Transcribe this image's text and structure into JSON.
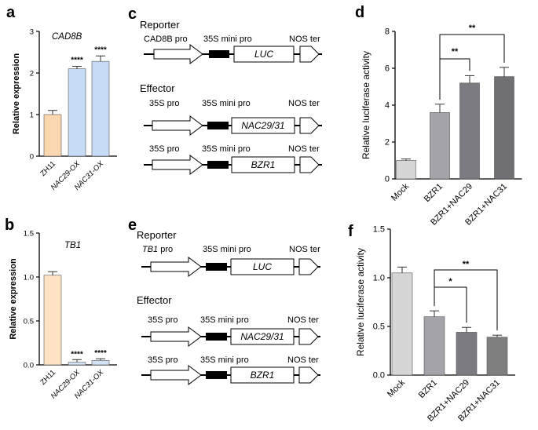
{
  "panels": {
    "a": "a",
    "b": "b",
    "c": "c",
    "d": "d",
    "e": "e",
    "f": "f"
  },
  "colors": {
    "zh11": "#fbd7b0",
    "nac_ox": "#c5dbf6",
    "tb1_zh11": "#fde2c4",
    "tb1_nac": "#d3e3f7",
    "mock": "#d6d6d6",
    "bzr1": "#a3a3a9",
    "bzr1_nac29": "#7b7b81",
    "bzr1_nac31": "#6f6f74",
    "f_bzr1_nac31": "#7e7e7e",
    "axis": "#000000"
  },
  "chart_data": [
    {
      "panel": "a",
      "type": "bar",
      "title": "CAD8B",
      "ylabel": "Relative expression",
      "ylim": [
        0,
        3
      ],
      "yticks": [
        "0",
        "1",
        "2",
        "3"
      ],
      "ytick_values": [
        0,
        1,
        2,
        3
      ],
      "categories": [
        "ZH11",
        "NAC29-OX",
        "NAC31-OX"
      ],
      "values": [
        1.0,
        2.1,
        2.28
      ],
      "errors": [
        0.1,
        0.06,
        0.13
      ],
      "annotations": [
        "",
        "****",
        "****"
      ],
      "colors": [
        "#fbd7b0",
        "#c5dbf6",
        "#c5dbf6"
      ],
      "italic_ticks": [
        false,
        true,
        true
      ]
    },
    {
      "panel": "b",
      "type": "bar",
      "title": "TB1",
      "ylabel": "Relative expression",
      "ylim": [
        0,
        1.5
      ],
      "yticks": [
        "0.0",
        "0.5",
        "1.0",
        "1.5"
      ],
      "ytick_values": [
        0,
        0.5,
        1.0,
        1.5
      ],
      "categories": [
        "ZH11",
        "NAC29-OX",
        "NAC31-OX"
      ],
      "values": [
        1.02,
        0.03,
        0.05
      ],
      "errors": [
        0.04,
        0.03,
        0.02
      ],
      "annotations": [
        "",
        "****",
        "****"
      ],
      "colors": [
        "#fde2c4",
        "#d3e3f7",
        "#d3e3f7"
      ],
      "italic_ticks": [
        false,
        true,
        true
      ]
    },
    {
      "panel": "d",
      "type": "bar",
      "ylabel": "Relative luciferase activity",
      "ylim": [
        0,
        8
      ],
      "yticks": [
        "0",
        "2",
        "4",
        "6",
        "8"
      ],
      "ytick_values": [
        0,
        2,
        4,
        6,
        8
      ],
      "categories": [
        "Mock",
        "BZR1",
        "BZR1+NAC29",
        "BZR1+NAC31"
      ],
      "values": [
        1.0,
        3.6,
        5.2,
        5.55
      ],
      "errors": [
        0.08,
        0.45,
        0.4,
        0.5
      ],
      "significance": [
        {
          "from": 1,
          "to": 2,
          "label": "**"
        },
        {
          "from": 1,
          "to": 3,
          "label": "**"
        }
      ],
      "colors": [
        "#d6d6d6",
        "#a3a3a9",
        "#7b7b81",
        "#6f6f74"
      ]
    },
    {
      "panel": "f",
      "type": "bar",
      "ylabel": "Relative luciferase activity",
      "ylim": [
        0,
        1.5
      ],
      "yticks": [
        "0.0",
        "0.5",
        "1.0",
        "1.5"
      ],
      "ytick_values": [
        0,
        0.5,
        1.0,
        1.5
      ],
      "categories": [
        "Mock",
        "BZR1",
        "BZR1+NAC29",
        "BZR1+NAC31"
      ],
      "values": [
        1.05,
        0.6,
        0.44,
        0.39
      ],
      "errors": [
        0.06,
        0.06,
        0.05,
        0.02
      ],
      "significance": [
        {
          "from": 1,
          "to": 2,
          "label": "*"
        },
        {
          "from": 1,
          "to": 3,
          "label": "**"
        }
      ],
      "colors": [
        "#d6d6d6",
        "#a3a3a9",
        "#7b7b81",
        "#7e7e7e"
      ]
    }
  ],
  "diagram_c": {
    "reporter_title": "Reporter",
    "effector_title": "Effector",
    "reporter": {
      "promoter": "CAD8B pro",
      "mini": "35S mini pro",
      "gene": "LUC",
      "terminator": "NOS ter"
    },
    "effector1": {
      "promoter": "35S pro",
      "mini": "35S mini pro",
      "gene": "NAC29/31",
      "terminator": "NOS ter"
    },
    "effector2": {
      "promoter": "35S pro",
      "mini": "35S mini pro",
      "gene": "BZR1",
      "terminator": "NOS ter"
    }
  },
  "diagram_e": {
    "reporter_title": "Reporter",
    "effector_title": "Effector",
    "reporter": {
      "promoter_italic": "TB1",
      "promoter_rest": " pro",
      "mini": "35S mini pro",
      "gene": "LUC",
      "terminator": "NOS ter"
    },
    "effector1": {
      "promoter": "35S pro",
      "mini": "35S mini pro",
      "gene": "NAC29/31",
      "terminator": "NOS ter"
    },
    "effector2": {
      "promoter": "35S pro",
      "mini": "35S mini pro",
      "gene": "BZR1",
      "terminator": "NOS ter"
    }
  }
}
